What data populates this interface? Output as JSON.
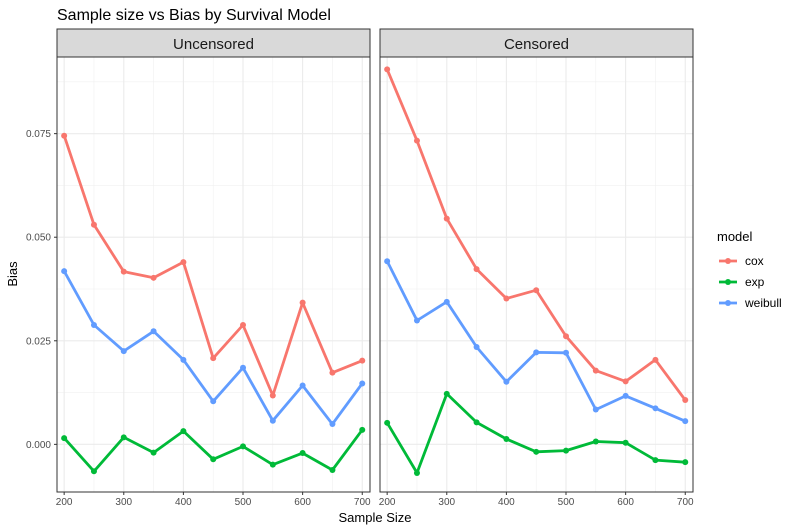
{
  "chart_data": {
    "type": "line",
    "title": "Sample size vs Bias by Survival Model",
    "xlabel": "Sample Size",
    "ylabel": "Bias",
    "x_ticks": [
      200,
      300,
      400,
      500,
      600,
      700
    ],
    "y_ticks": [
      0.0,
      0.025,
      0.05,
      0.075
    ],
    "y_tick_labels": [
      "0.000",
      "0.025",
      "0.050",
      "0.075"
    ],
    "xlim": [
      188,
      713
    ],
    "ylim": [
      -0.0115,
      0.0935
    ],
    "grid": true,
    "legend": {
      "title": "model",
      "position": "right"
    },
    "x": [
      200,
      250,
      300,
      350,
      400,
      450,
      500,
      550,
      600,
      650,
      700
    ],
    "panels": [
      {
        "name": "Uncensored",
        "series": [
          {
            "name": "cox",
            "color": "#F8766D",
            "values": [
              0.0745,
              0.053,
              0.0417,
              0.0402,
              0.044,
              0.0208,
              0.0288,
              0.0118,
              0.0342,
              0.0173,
              0.0202
            ]
          },
          {
            "name": "exp",
            "color": "#00BA38",
            "values": [
              0.0015,
              -0.0065,
              0.0017,
              -0.002,
              0.0032,
              -0.0036,
              -0.0005,
              -0.0049,
              -0.0021,
              -0.0062,
              0.0035
            ]
          },
          {
            "name": "weibull",
            "color": "#619CFF",
            "values": [
              0.0418,
              0.0288,
              0.0225,
              0.0273,
              0.0204,
              0.0104,
              0.0185,
              0.0057,
              0.0142,
              0.0049,
              0.0147
            ]
          }
        ]
      },
      {
        "name": "Censored",
        "series": [
          {
            "name": "cox",
            "color": "#F8766D",
            "values": [
              0.0905,
              0.0733,
              0.0545,
              0.0423,
              0.0352,
              0.0372,
              0.0261,
              0.0178,
              0.0152,
              0.0204,
              0.0107
            ]
          },
          {
            "name": "exp",
            "color": "#00BA38",
            "values": [
              0.0052,
              -0.0069,
              0.0122,
              0.0053,
              0.0013,
              -0.0018,
              -0.0015,
              0.0007,
              0.0004,
              -0.0038,
              -0.0043
            ]
          },
          {
            "name": "weibull",
            "color": "#619CFF",
            "values": [
              0.0442,
              0.0299,
              0.0344,
              0.0235,
              0.0151,
              0.0222,
              0.0221,
              0.0084,
              0.0117,
              0.0087,
              0.0056
            ]
          }
        ]
      }
    ]
  }
}
